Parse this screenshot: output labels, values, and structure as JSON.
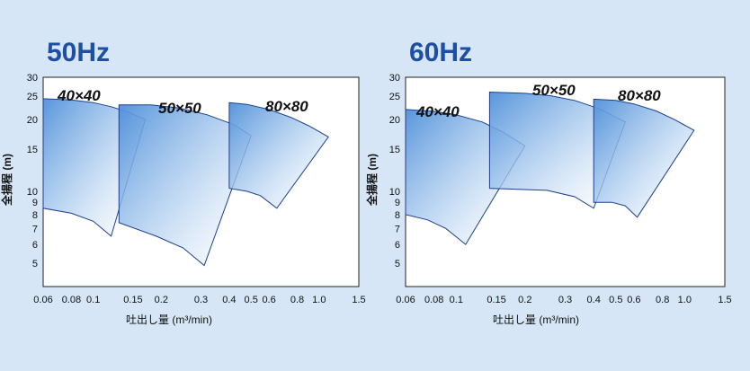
{
  "chart_data": [
    {
      "type": "area",
      "title": "50Hz",
      "xlabel": "吐出し量 (m³/min)",
      "ylabel": "全揚程 (m)",
      "x_scale": "log",
      "y_scale": "log",
      "xlim": [
        0.06,
        1.5
      ],
      "ylim": [
        4,
        30
      ],
      "x_ticks": [
        0.06,
        0.08,
        0.1,
        0.15,
        0.2,
        0.3,
        0.4,
        0.5,
        0.6,
        0.8,
        1.0,
        1.5
      ],
      "x_tick_labels": [
        "0.06",
        "0.08",
        "0.1",
        "0.15",
        "0.2",
        "0.3",
        "0.4",
        "0.5",
        "0.6",
        "0.8",
        "1.0",
        "1.5"
      ],
      "y_ticks": [
        5,
        6,
        7,
        8,
        9,
        10,
        15,
        20,
        25,
        30
      ],
      "y_tick_labels": [
        "5",
        "6",
        "7",
        "8",
        "9",
        "10",
        "15",
        "20",
        "25",
        "30"
      ],
      "series": [
        {
          "name": "40×40",
          "polygon": [
            [
              0.06,
              24.4
            ],
            [
              0.08,
              24.1
            ],
            [
              0.1,
              23.5
            ],
            [
              0.12,
              22.6
            ],
            [
              0.14,
              21.6
            ],
            [
              0.17,
              20.0
            ],
            [
              0.12,
              6.5
            ],
            [
              0.1,
              7.5
            ],
            [
              0.08,
              8.1
            ],
            [
              0.06,
              8.5
            ]
          ]
        },
        {
          "name": "50×50",
          "polygon": [
            [
              0.13,
              23.0
            ],
            [
              0.18,
              23.0
            ],
            [
              0.24,
              22.3
            ],
            [
              0.32,
              20.9
            ],
            [
              0.42,
              19.0
            ],
            [
              0.5,
              17.1
            ],
            [
              0.31,
              4.9
            ],
            [
              0.25,
              5.8
            ],
            [
              0.19,
              6.5
            ],
            [
              0.13,
              7.4
            ]
          ]
        },
        {
          "name": "80×80",
          "polygon": [
            [
              0.4,
              23.5
            ],
            [
              0.48,
              23.1
            ],
            [
              0.6,
              22.0
            ],
            [
              0.75,
              20.4
            ],
            [
              0.9,
              18.8
            ],
            [
              1.1,
              16.9
            ],
            [
              0.65,
              8.5
            ],
            [
              0.55,
              9.6
            ],
            [
              0.48,
              10.0
            ],
            [
              0.4,
              10.3
            ]
          ]
        }
      ]
    },
    {
      "type": "area",
      "title": "60Hz",
      "xlabel": "吐出し量 (m³/min)",
      "ylabel": "全揚程 (m)",
      "x_scale": "log",
      "y_scale": "log",
      "xlim": [
        0.06,
        1.5
      ],
      "ylim": [
        4,
        30
      ],
      "x_ticks": [
        0.06,
        0.08,
        0.1,
        0.15,
        0.2,
        0.3,
        0.4,
        0.5,
        0.6,
        0.8,
        1.0,
        1.5
      ],
      "x_tick_labels": [
        "0.06",
        "0.08",
        "0.1",
        "0.15",
        "0.2",
        "0.3",
        "0.4",
        "0.5",
        "0.6",
        "0.8",
        "1.0",
        "1.5"
      ],
      "y_ticks": [
        5,
        6,
        7,
        8,
        9,
        10,
        15,
        20,
        25,
        30
      ],
      "y_tick_labels": [
        "5",
        "6",
        "7",
        "8",
        "9",
        "10",
        "15",
        "20",
        "25",
        "30"
      ],
      "series": [
        {
          "name": "40×40",
          "polygon": [
            [
              0.06,
              22.0
            ],
            [
              0.08,
              21.6
            ],
            [
              0.1,
              20.9
            ],
            [
              0.13,
              19.5
            ],
            [
              0.16,
              17.7
            ],
            [
              0.2,
              15.5
            ],
            [
              0.11,
              6.0
            ],
            [
              0.09,
              7.0
            ],
            [
              0.075,
              7.6
            ],
            [
              0.06,
              8.0
            ]
          ]
        },
        {
          "name": "50×50",
          "polygon": [
            [
              0.14,
              26.0
            ],
            [
              0.2,
              25.7
            ],
            [
              0.26,
              25.1
            ],
            [
              0.33,
              24.0
            ],
            [
              0.42,
              22.2
            ],
            [
              0.55,
              19.5
            ],
            [
              0.4,
              8.5
            ],
            [
              0.33,
              9.5
            ],
            [
              0.25,
              10.1
            ],
            [
              0.14,
              10.3
            ]
          ]
        },
        {
          "name": "80×80",
          "polygon": [
            [
              0.4,
              24.3
            ],
            [
              0.5,
              24.0
            ],
            [
              0.6,
              23.2
            ],
            [
              0.75,
              21.7
            ],
            [
              0.9,
              20.0
            ],
            [
              1.1,
              18.0
            ],
            [
              0.62,
              7.8
            ],
            [
              0.55,
              8.7
            ],
            [
              0.48,
              9.0
            ],
            [
              0.4,
              9.0
            ]
          ]
        }
      ]
    }
  ]
}
